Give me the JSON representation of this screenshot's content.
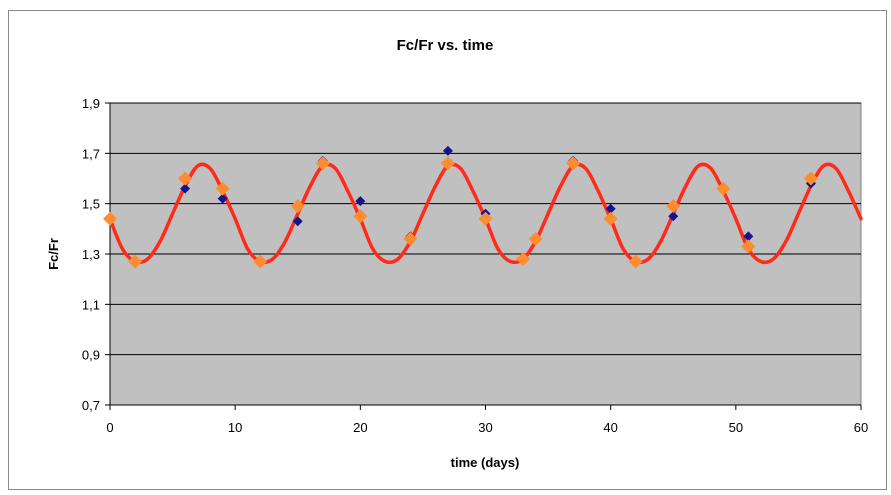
{
  "chart_data": {
    "type": "scatter",
    "title": "Fc/Fr vs. time",
    "xlabel": "time (days)",
    "ylabel": "Fc/Fr",
    "xlim": [
      0,
      60
    ],
    "ylim": [
      0.7,
      1.9
    ],
    "x_ticks": [
      "0",
      "10",
      "20",
      "30",
      "40",
      "50",
      "60"
    ],
    "y_ticks": [
      "0,7",
      "0,9",
      "1,1",
      "1,3",
      "1,5",
      "1,7",
      "1,9"
    ],
    "grid": true,
    "legend": "none",
    "colors": {
      "plot_background": "#c0c0c0",
      "gridline": "#000000",
      "fit_line": "#ff2a1a",
      "observed_marker": "#14148c",
      "model_marker": "#ff8c2e"
    },
    "series": [
      {
        "role": "fit_curve",
        "marker": "line",
        "x": [
          0,
          1,
          2,
          3,
          4,
          5,
          6,
          7,
          8,
          9,
          10,
          11,
          12,
          13,
          14,
          15,
          16,
          17,
          18,
          19,
          20,
          21,
          22,
          23,
          24,
          25,
          26,
          27,
          28,
          29,
          30,
          31,
          32,
          33,
          34,
          35,
          36,
          37,
          38,
          39,
          40,
          41,
          42,
          43,
          44,
          45,
          46,
          47,
          48,
          49,
          50,
          51,
          52,
          53,
          54,
          55,
          56,
          57,
          58,
          59,
          60
        ],
        "y": [
          1.44,
          1.32,
          1.27,
          1.28,
          1.35,
          1.46,
          1.57,
          1.65,
          1.64,
          1.55,
          1.44,
          1.32,
          1.27,
          1.28,
          1.35,
          1.46,
          1.57,
          1.65,
          1.64,
          1.55,
          1.44,
          1.32,
          1.27,
          1.28,
          1.35,
          1.46,
          1.57,
          1.65,
          1.64,
          1.55,
          1.44,
          1.32,
          1.27,
          1.28,
          1.35,
          1.46,
          1.57,
          1.65,
          1.64,
          1.55,
          1.44,
          1.32,
          1.27,
          1.28,
          1.35,
          1.46,
          1.57,
          1.65,
          1.64,
          1.55,
          1.44,
          1.32,
          1.27,
          1.28,
          1.35,
          1.46,
          1.57,
          1.65,
          1.64,
          1.55,
          1.44
        ]
      },
      {
        "role": "observed",
        "marker": "small-diamond",
        "x": [
          0,
          2,
          6,
          9,
          12,
          15,
          17,
          20,
          24,
          27,
          30,
          33,
          37,
          40,
          42,
          45,
          49,
          51,
          56
        ],
        "y": [
          1.44,
          1.27,
          1.56,
          1.52,
          1.27,
          1.43,
          1.67,
          1.51,
          1.37,
          1.71,
          1.46,
          1.28,
          1.67,
          1.48,
          1.27,
          1.45,
          1.56,
          1.37,
          1.58
        ]
      },
      {
        "role": "model",
        "marker": "large-diamond",
        "x": [
          0,
          2,
          6,
          9,
          12,
          15,
          17,
          20,
          24,
          27,
          30,
          33,
          34,
          37,
          40,
          42,
          45,
          49,
          51,
          56
        ],
        "y": [
          1.44,
          1.27,
          1.6,
          1.56,
          1.27,
          1.49,
          1.66,
          1.45,
          1.36,
          1.66,
          1.44,
          1.28,
          1.36,
          1.66,
          1.44,
          1.27,
          1.49,
          1.56,
          1.33,
          1.6
        ]
      }
    ]
  }
}
